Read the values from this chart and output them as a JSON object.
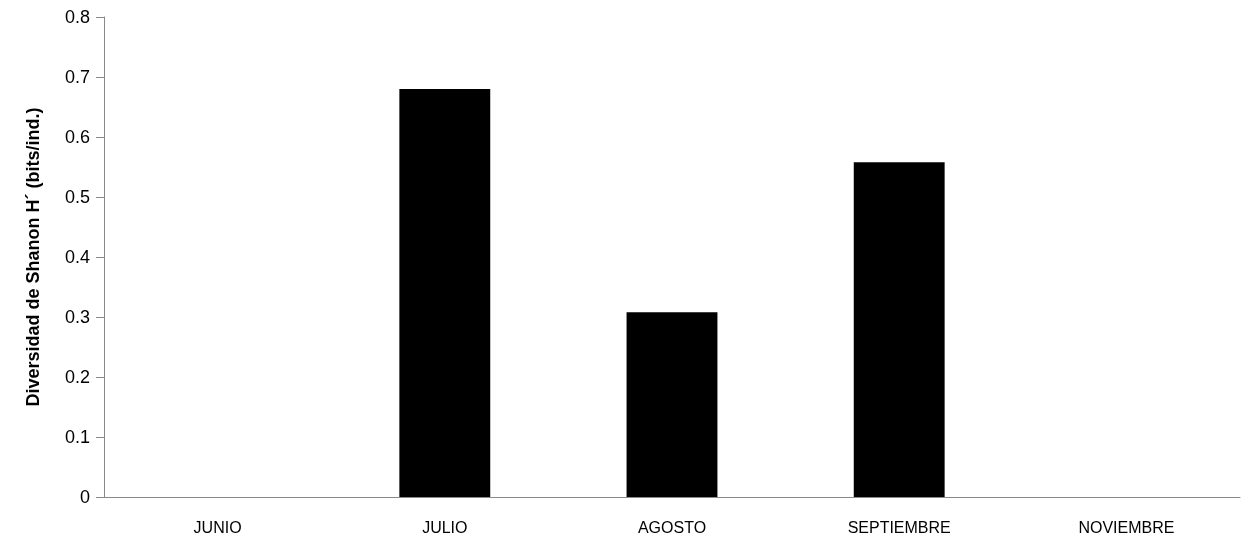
{
  "chart_data": {
    "type": "bar",
    "ylabel": "Diversidad de Shanon H´ (bits/ind.)",
    "categories": [
      "JUNIO",
      "JULIO",
      "AGOSTO",
      "SEPTIEMBRE",
      "NOVIEMBRE"
    ],
    "values": [
      0,
      0.68,
      0.308,
      0.558,
      0
    ],
    "color": "#000000",
    "ylim": [
      0,
      0.8
    ],
    "yticks": [
      0,
      0.1,
      0.2,
      0.3,
      0.4,
      0.5,
      0.6,
      0.7,
      0.8
    ],
    "grid": false
  }
}
